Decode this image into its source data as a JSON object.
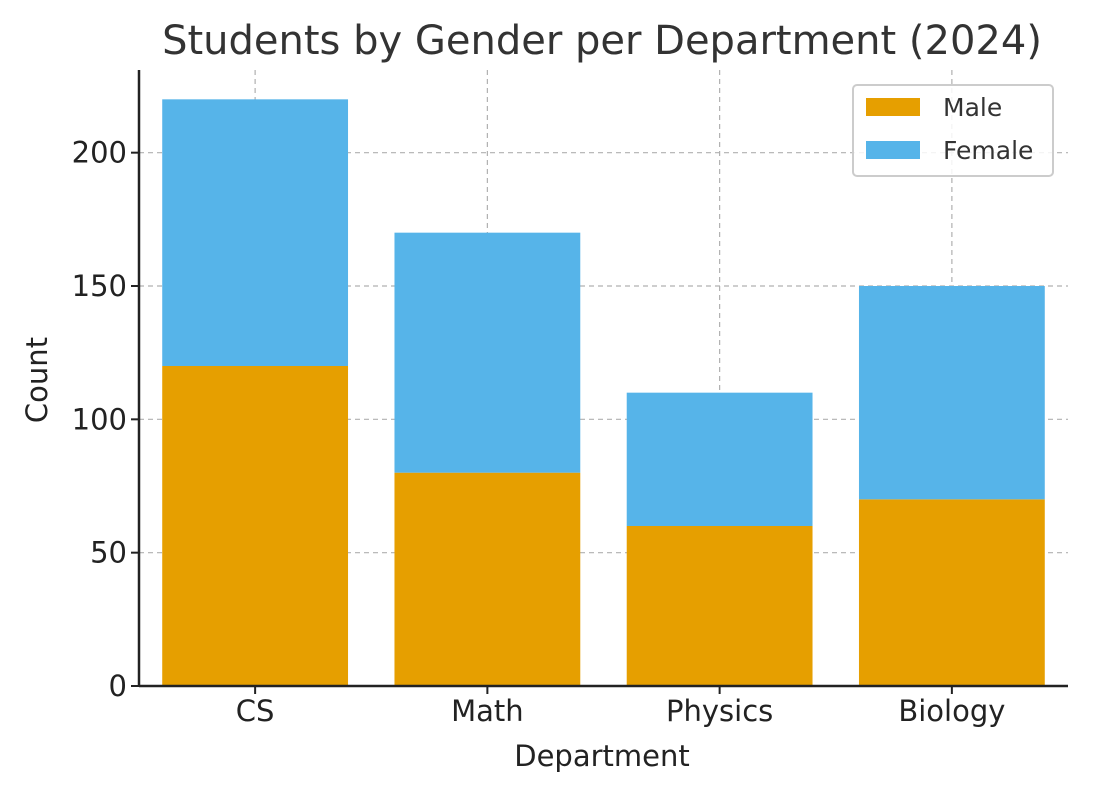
{
  "chart_data": {
    "type": "bar",
    "stacked": true,
    "title": "Students by Gender per Department (2024)",
    "xlabel": "Department",
    "ylabel": "Count",
    "categories": [
      "CS",
      "Math",
      "Physics",
      "Biology"
    ],
    "series": [
      {
        "name": "Male",
        "values": [
          120,
          80,
          60,
          70
        ],
        "color": "#E69F00"
      },
      {
        "name": "Female",
        "values": [
          100,
          90,
          50,
          80
        ],
        "color": "#56B4E9"
      }
    ],
    "yticks": [
      "0",
      "50",
      "100",
      "150",
      "200"
    ],
    "ylim": [
      0,
      231
    ],
    "grid": true,
    "legend": "top-right"
  }
}
